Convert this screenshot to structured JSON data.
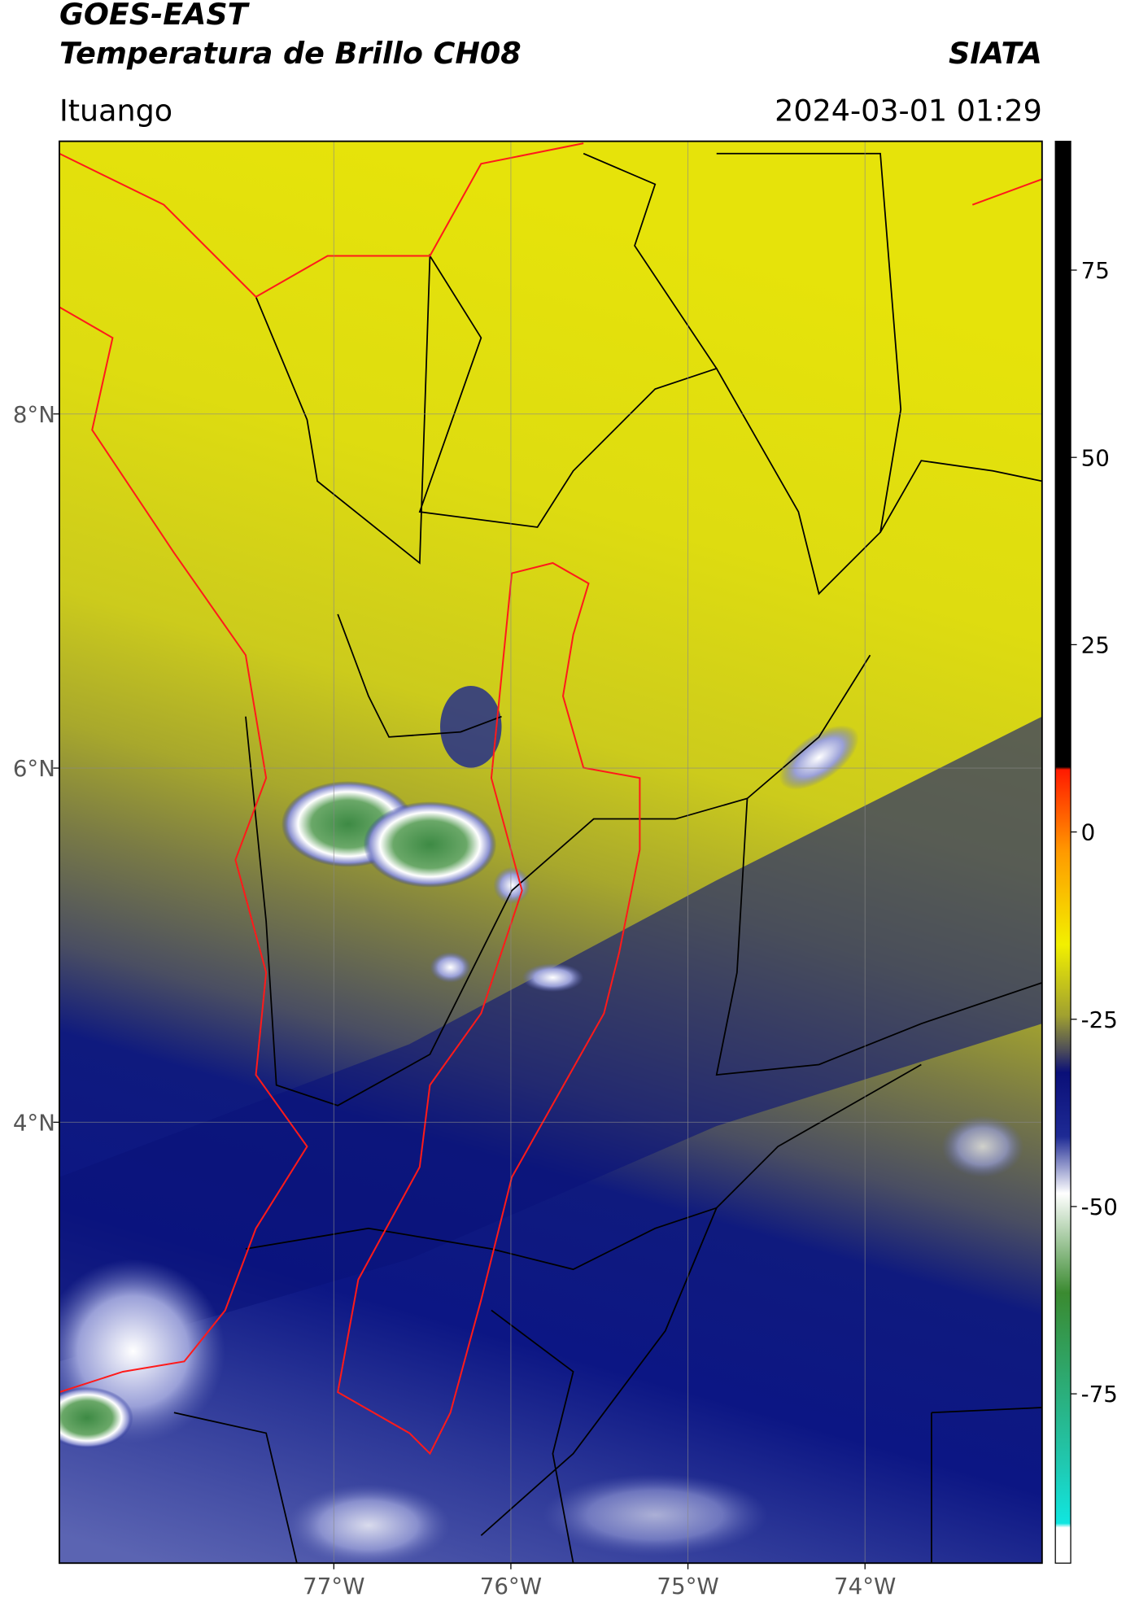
{
  "header": {
    "title": "GOES-EAST",
    "subtitle": "Temperatura de Brillo CH08",
    "org": "SIATA",
    "location": "Ituango",
    "datetime": "2024-03-01 01:29"
  },
  "map": {
    "lonlim": [
      -78.55,
      -73.0
    ],
    "latlim": [
      1.51,
      9.54
    ],
    "grid": true,
    "lon_ticks": [
      {
        "value": -77,
        "label": "77°W"
      },
      {
        "value": -76,
        "label": "76°W"
      },
      {
        "value": -75,
        "label": "75°W"
      },
      {
        "value": -74,
        "label": "74°W"
      }
    ],
    "lat_ticks": [
      {
        "value": 8,
        "label": "8°N"
      },
      {
        "value": 6,
        "label": "6°N"
      },
      {
        "value": 4,
        "label": "4°N"
      }
    ]
  },
  "colorbar": {
    "lim": [
      -97.6,
      92.2
    ],
    "ticks": [
      75,
      50,
      25,
      0,
      -25,
      -50,
      -75
    ]
  }
}
